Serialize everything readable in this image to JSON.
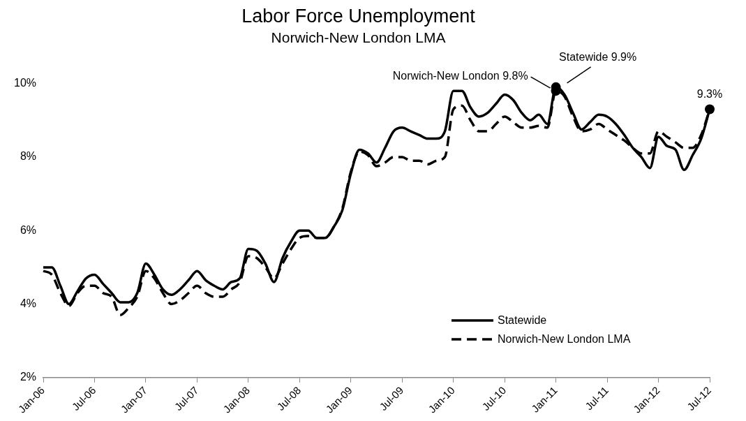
{
  "chart_data": {
    "type": "line",
    "title": "Labor Force Unemployment",
    "subtitle": "Norwich-New London LMA",
    "categories": [
      "Jan-06",
      null,
      null,
      null,
      null,
      null,
      "Jul-06",
      null,
      null,
      null,
      null,
      null,
      "Jan-07",
      null,
      null,
      null,
      null,
      null,
      "Jul-07",
      null,
      null,
      null,
      null,
      null,
      "Jan-08",
      null,
      null,
      null,
      null,
      null,
      "Jul-08",
      null,
      null,
      null,
      null,
      null,
      "Jan-09",
      null,
      null,
      null,
      null,
      null,
      "Jul-09",
      null,
      null,
      null,
      null,
      null,
      "Jan-10",
      null,
      null,
      null,
      null,
      null,
      "Jul-10",
      null,
      null,
      null,
      null,
      null,
      "Jan-11",
      null,
      null,
      null,
      null,
      null,
      "Jul-11",
      null,
      null,
      null,
      null,
      null,
      "Jan-12",
      null,
      null,
      null,
      null,
      null,
      "Jul-12"
    ],
    "series": [
      {
        "name": "Statewide",
        "color": "#000000",
        "line_style": "solid",
        "values": [
          5.0,
          5.0,
          4.5,
          4.0,
          4.35,
          4.7,
          4.8,
          4.55,
          4.3,
          4.05,
          4.05,
          4.3,
          5.1,
          4.8,
          4.4,
          4.25,
          4.4,
          4.65,
          4.9,
          4.65,
          4.5,
          4.4,
          4.6,
          4.7,
          5.5,
          5.45,
          5.1,
          4.6,
          5.25,
          5.7,
          6.0,
          6.0,
          5.8,
          5.8,
          6.1,
          6.55,
          7.55,
          8.2,
          8.1,
          7.85,
          8.25,
          8.7,
          8.8,
          8.7,
          8.6,
          8.5,
          8.5,
          8.7,
          9.8,
          9.8,
          9.35,
          9.1,
          9.2,
          9.45,
          9.7,
          9.55,
          9.2,
          9.0,
          9.15,
          8.9,
          9.9,
          9.7,
          9.2,
          8.75,
          8.95,
          9.15,
          9.1,
          8.9,
          8.6,
          8.25,
          8.0,
          7.7,
          8.55,
          8.3,
          8.2,
          7.65,
          8.05,
          8.5,
          9.3
        ]
      },
      {
        "name": "Norwich-New London LMA",
        "color": "#000000",
        "line_style": "dashed",
        "values": [
          4.9,
          4.8,
          4.3,
          3.95,
          4.3,
          4.5,
          4.5,
          4.3,
          4.2,
          3.7,
          3.9,
          4.2,
          4.9,
          4.7,
          4.3,
          4.0,
          4.1,
          4.3,
          4.5,
          4.3,
          4.2,
          4.2,
          4.4,
          4.6,
          5.3,
          5.25,
          5.0,
          4.7,
          5.1,
          5.5,
          5.8,
          5.85,
          5.8,
          5.8,
          6.1,
          6.6,
          7.6,
          8.15,
          8.05,
          7.75,
          7.85,
          8.0,
          8.0,
          7.9,
          7.9,
          7.8,
          7.9,
          8.0,
          9.3,
          9.4,
          9.0,
          8.7,
          8.7,
          8.9,
          9.1,
          8.95,
          8.8,
          8.8,
          8.85,
          8.8,
          9.8,
          9.65,
          9.1,
          8.7,
          8.75,
          8.9,
          8.75,
          8.6,
          8.45,
          8.25,
          8.1,
          8.1,
          8.7,
          8.55,
          8.4,
          8.25,
          8.25,
          8.6,
          9.3
        ]
      }
    ],
    "ylim": [
      2,
      10
    ],
    "yticks": [
      {
        "value": 2,
        "label": "2%"
      },
      {
        "value": 4,
        "label": "4%"
      },
      {
        "value": 6,
        "label": "6%"
      },
      {
        "value": 8,
        "label": "8%"
      },
      {
        "value": 10,
        "label": "10%"
      }
    ],
    "grid": false,
    "legend": "bottom right",
    "marker": "none",
    "annotations": [
      {
        "text": "Norwich-New London 9.8%",
        "x": "Jan-11",
        "y": 9.8
      },
      {
        "text": "Statewide 9.9%",
        "x": "Jan-11",
        "y": 9.9
      },
      {
        "text": "9.3%",
        "x": "Jul-12",
        "y": 9.3
      }
    ]
  }
}
